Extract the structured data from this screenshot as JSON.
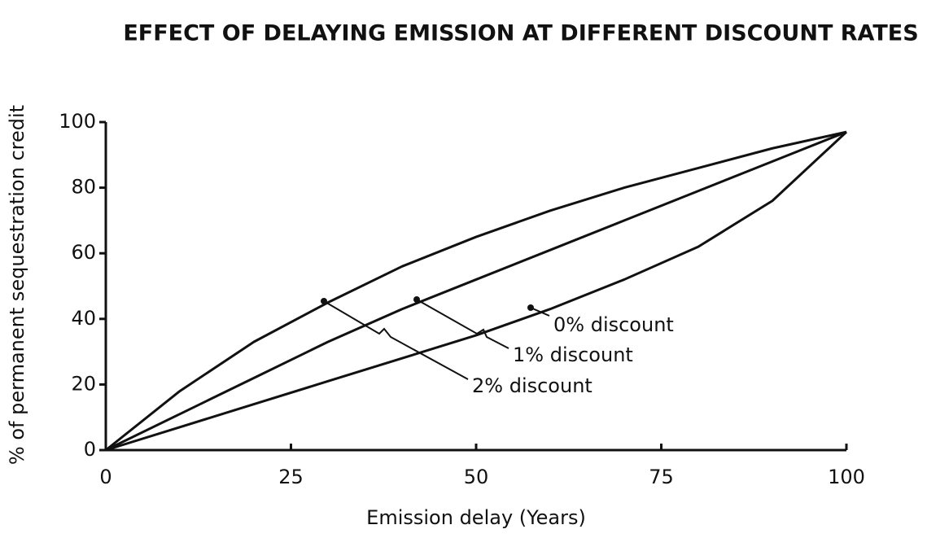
{
  "chart_data": {
    "type": "line",
    "title": "EFFECT OF DELAYING EMISSION AT DIFFERENT DISCOUNT RATES",
    "x_label": "Emission delay (Years)",
    "y_label": "% of permanent sequestration credit",
    "x": [
      0,
      10,
      20,
      30,
      40,
      50,
      60,
      70,
      80,
      90,
      100
    ],
    "series": [
      {
        "name": "0% discount",
        "color": "#111111",
        "values": [
          0,
          7,
          14,
          21,
          28,
          35,
          43,
          52,
          62,
          76,
          97
        ]
      },
      {
        "name": "1% discount",
        "color": "#111111",
        "values": [
          0,
          11,
          22,
          33,
          43,
          52,
          61,
          70,
          79,
          88,
          97
        ]
      },
      {
        "name": "2% discount",
        "color": "#111111",
        "values": [
          0,
          18,
          33,
          45,
          56,
          65,
          73,
          80,
          86,
          92,
          97
        ]
      }
    ],
    "xlim": [
      0,
      100
    ],
    "xticks": [
      0,
      25,
      50,
      75,
      100
    ],
    "ylim": [
      0,
      100
    ],
    "yticks": [
      0,
      20,
      40,
      60,
      80,
      100
    ],
    "grid": false
  }
}
